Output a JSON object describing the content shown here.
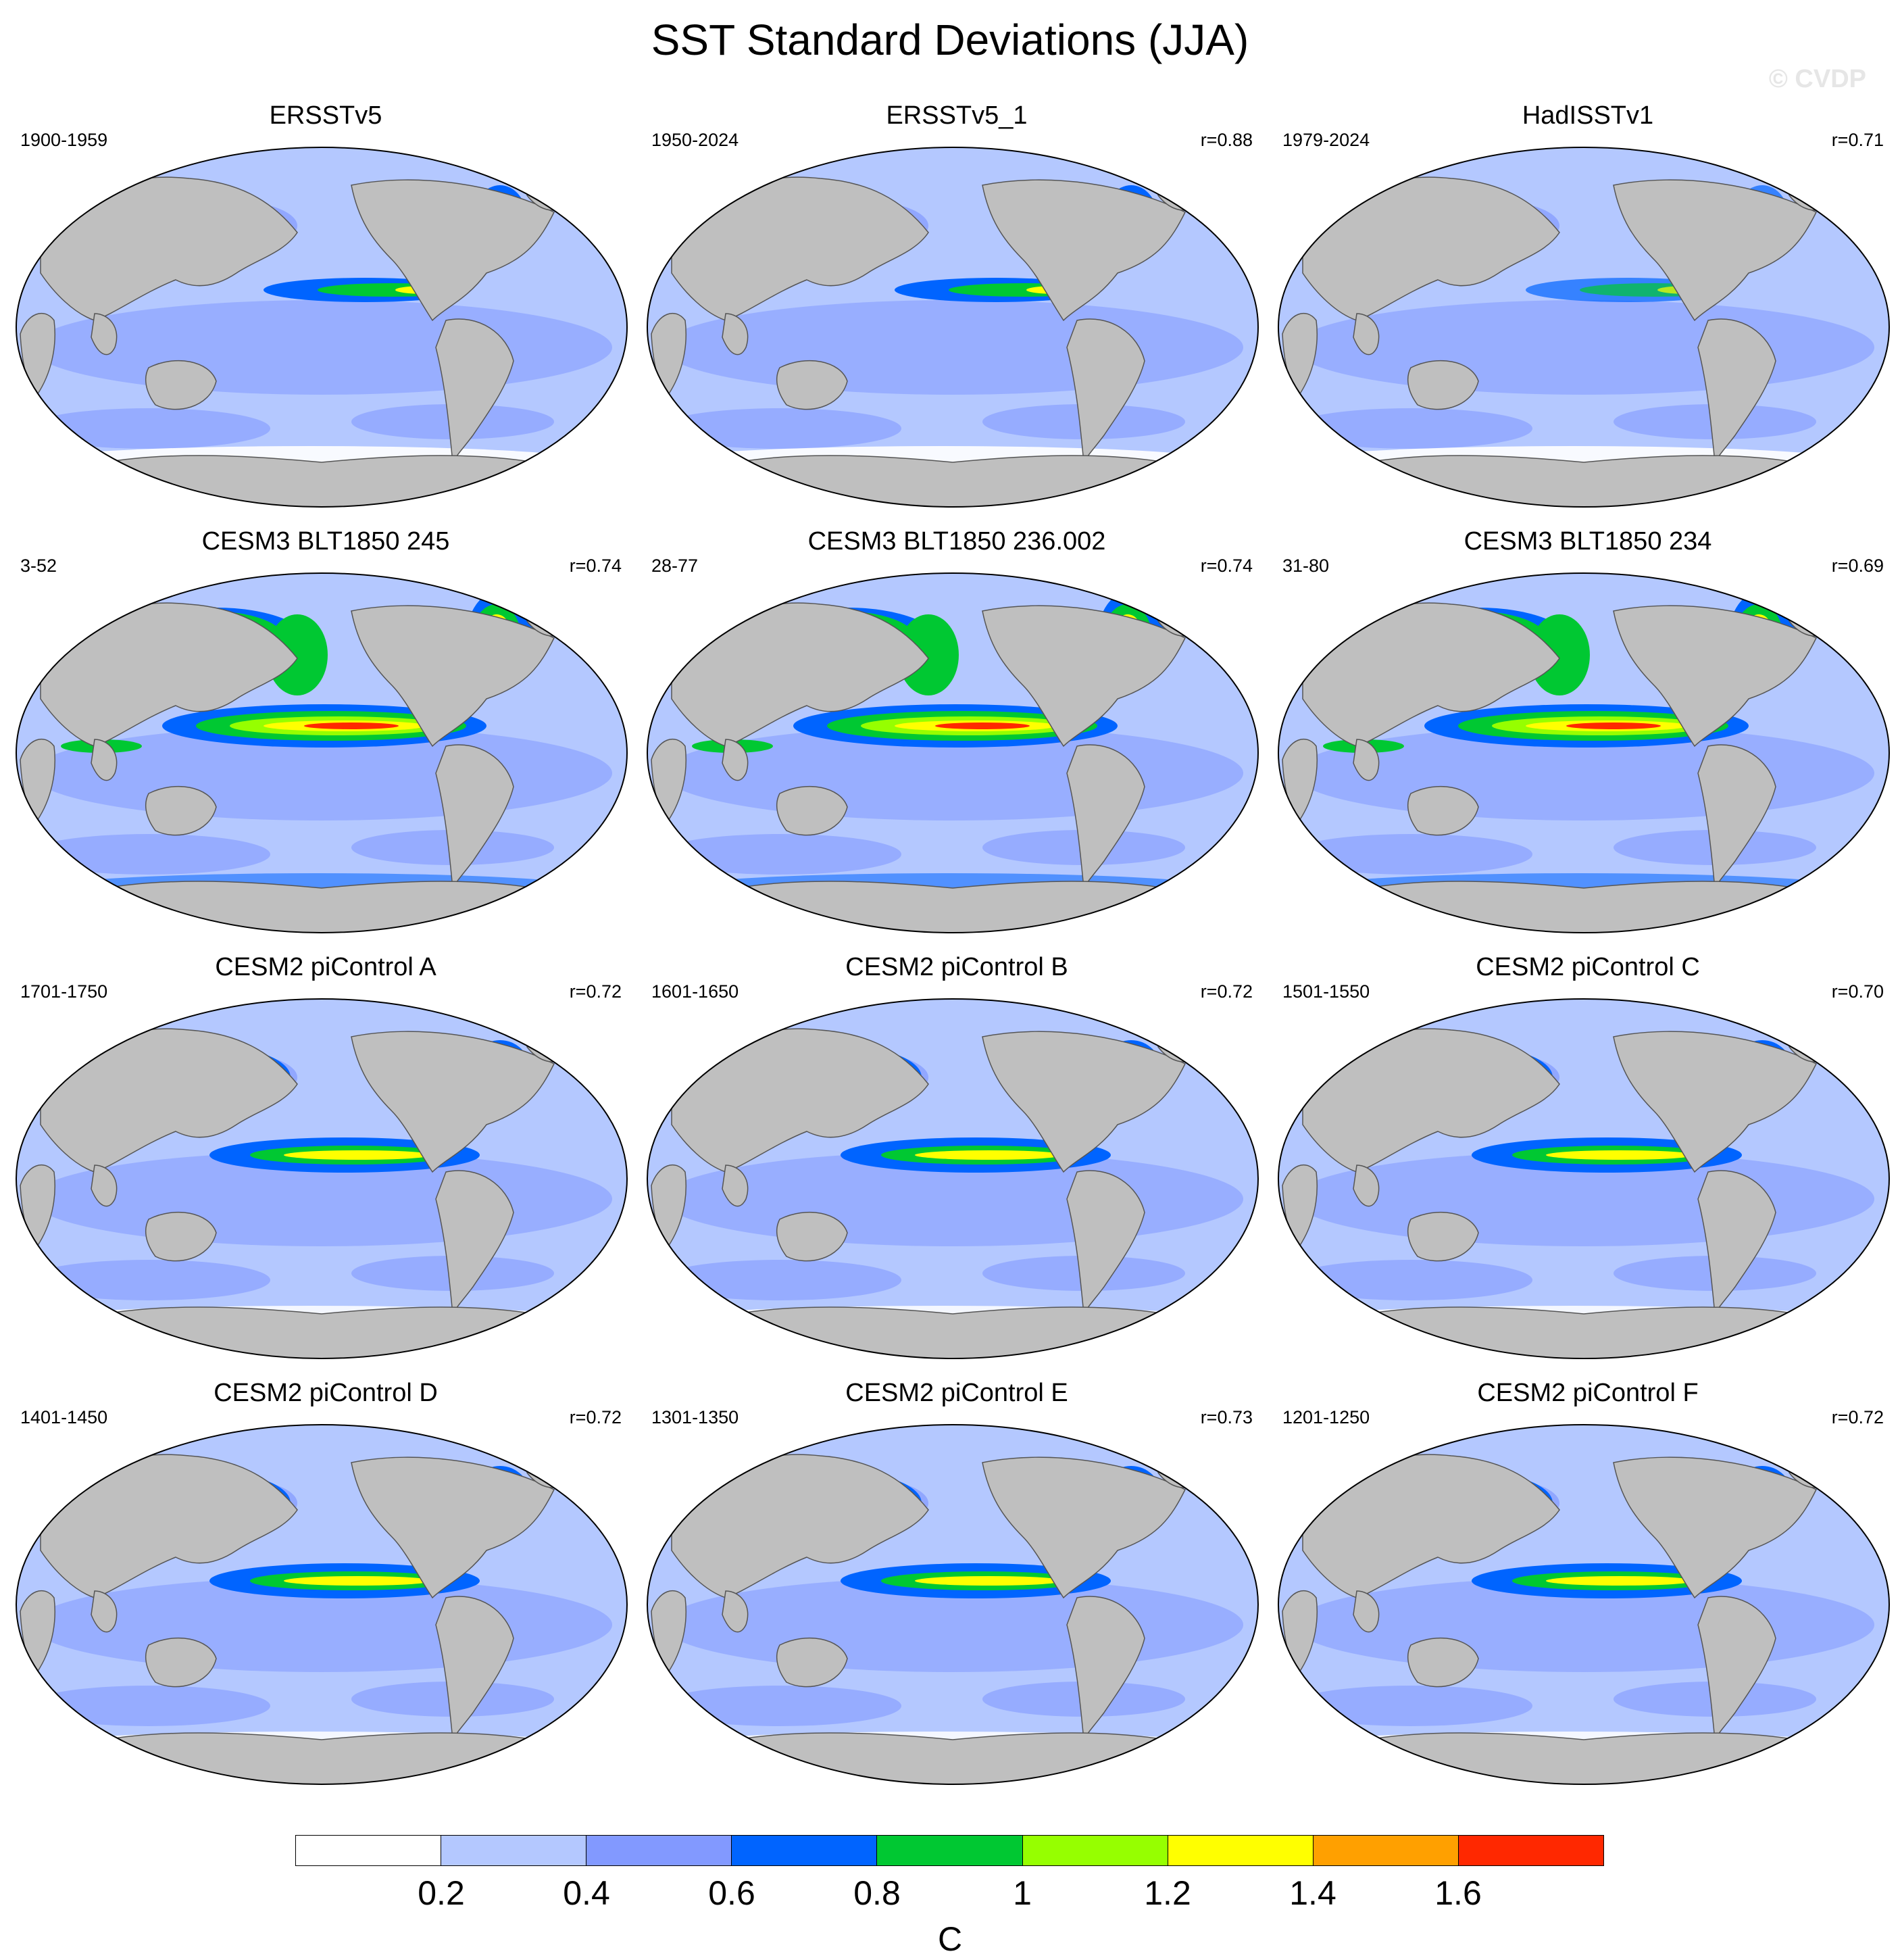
{
  "title": "SST Standard Deviations (JJA)",
  "watermark": "© CVDP",
  "panels": [
    {
      "title": "ERSSTv5",
      "period": "1900-1959",
      "corr": "",
      "style": "obs"
    },
    {
      "title": "ERSSTv5_1",
      "period": "1950-2024",
      "corr": "r=0.88",
      "style": "obs"
    },
    {
      "title": "HadISSTv1",
      "period": "1979-2024",
      "corr": "r=0.71",
      "style": "obs2"
    },
    {
      "title": "CESM3 BLT1850 245",
      "period": "3-52",
      "corr": "r=0.74",
      "style": "cesm3"
    },
    {
      "title": "CESM3 BLT1850 236.002",
      "period": "28-77",
      "corr": "r=0.74",
      "style": "cesm3"
    },
    {
      "title": "CESM3 BLT1850 234",
      "period": "31-80",
      "corr": "r=0.69",
      "style": "cesm3"
    },
    {
      "title": "CESM2 piControl A",
      "period": "1701-1750",
      "corr": "r=0.72",
      "style": "cesm2"
    },
    {
      "title": "CESM2 piControl B",
      "period": "1601-1650",
      "corr": "r=0.72",
      "style": "cesm2"
    },
    {
      "title": "CESM2 piControl C",
      "period": "1501-1550",
      "corr": "r=0.70",
      "style": "cesm2"
    },
    {
      "title": "CESM2 piControl D",
      "period": "1401-1450",
      "corr": "r=0.72",
      "style": "cesm2"
    },
    {
      "title": "CESM2 piControl E",
      "period": "1301-1350",
      "corr": "r=0.73",
      "style": "cesm2"
    },
    {
      "title": "CESM2 piControl F",
      "period": "1201-1250",
      "corr": "r=0.72",
      "style": "cesm2"
    }
  ],
  "colorbar": {
    "colors": [
      "#ffffff",
      "#b4c8ff",
      "#8299ff",
      "#0064ff",
      "#00c832",
      "#96ff00",
      "#ffff00",
      "#ffa000",
      "#ff2800"
    ],
    "ticks": [
      "0.2",
      "0.4",
      "0.6",
      "0.8",
      "1",
      "1.2",
      "1.4",
      "1.6"
    ],
    "units": "C"
  },
  "land_color": "#bfbfbf"
}
